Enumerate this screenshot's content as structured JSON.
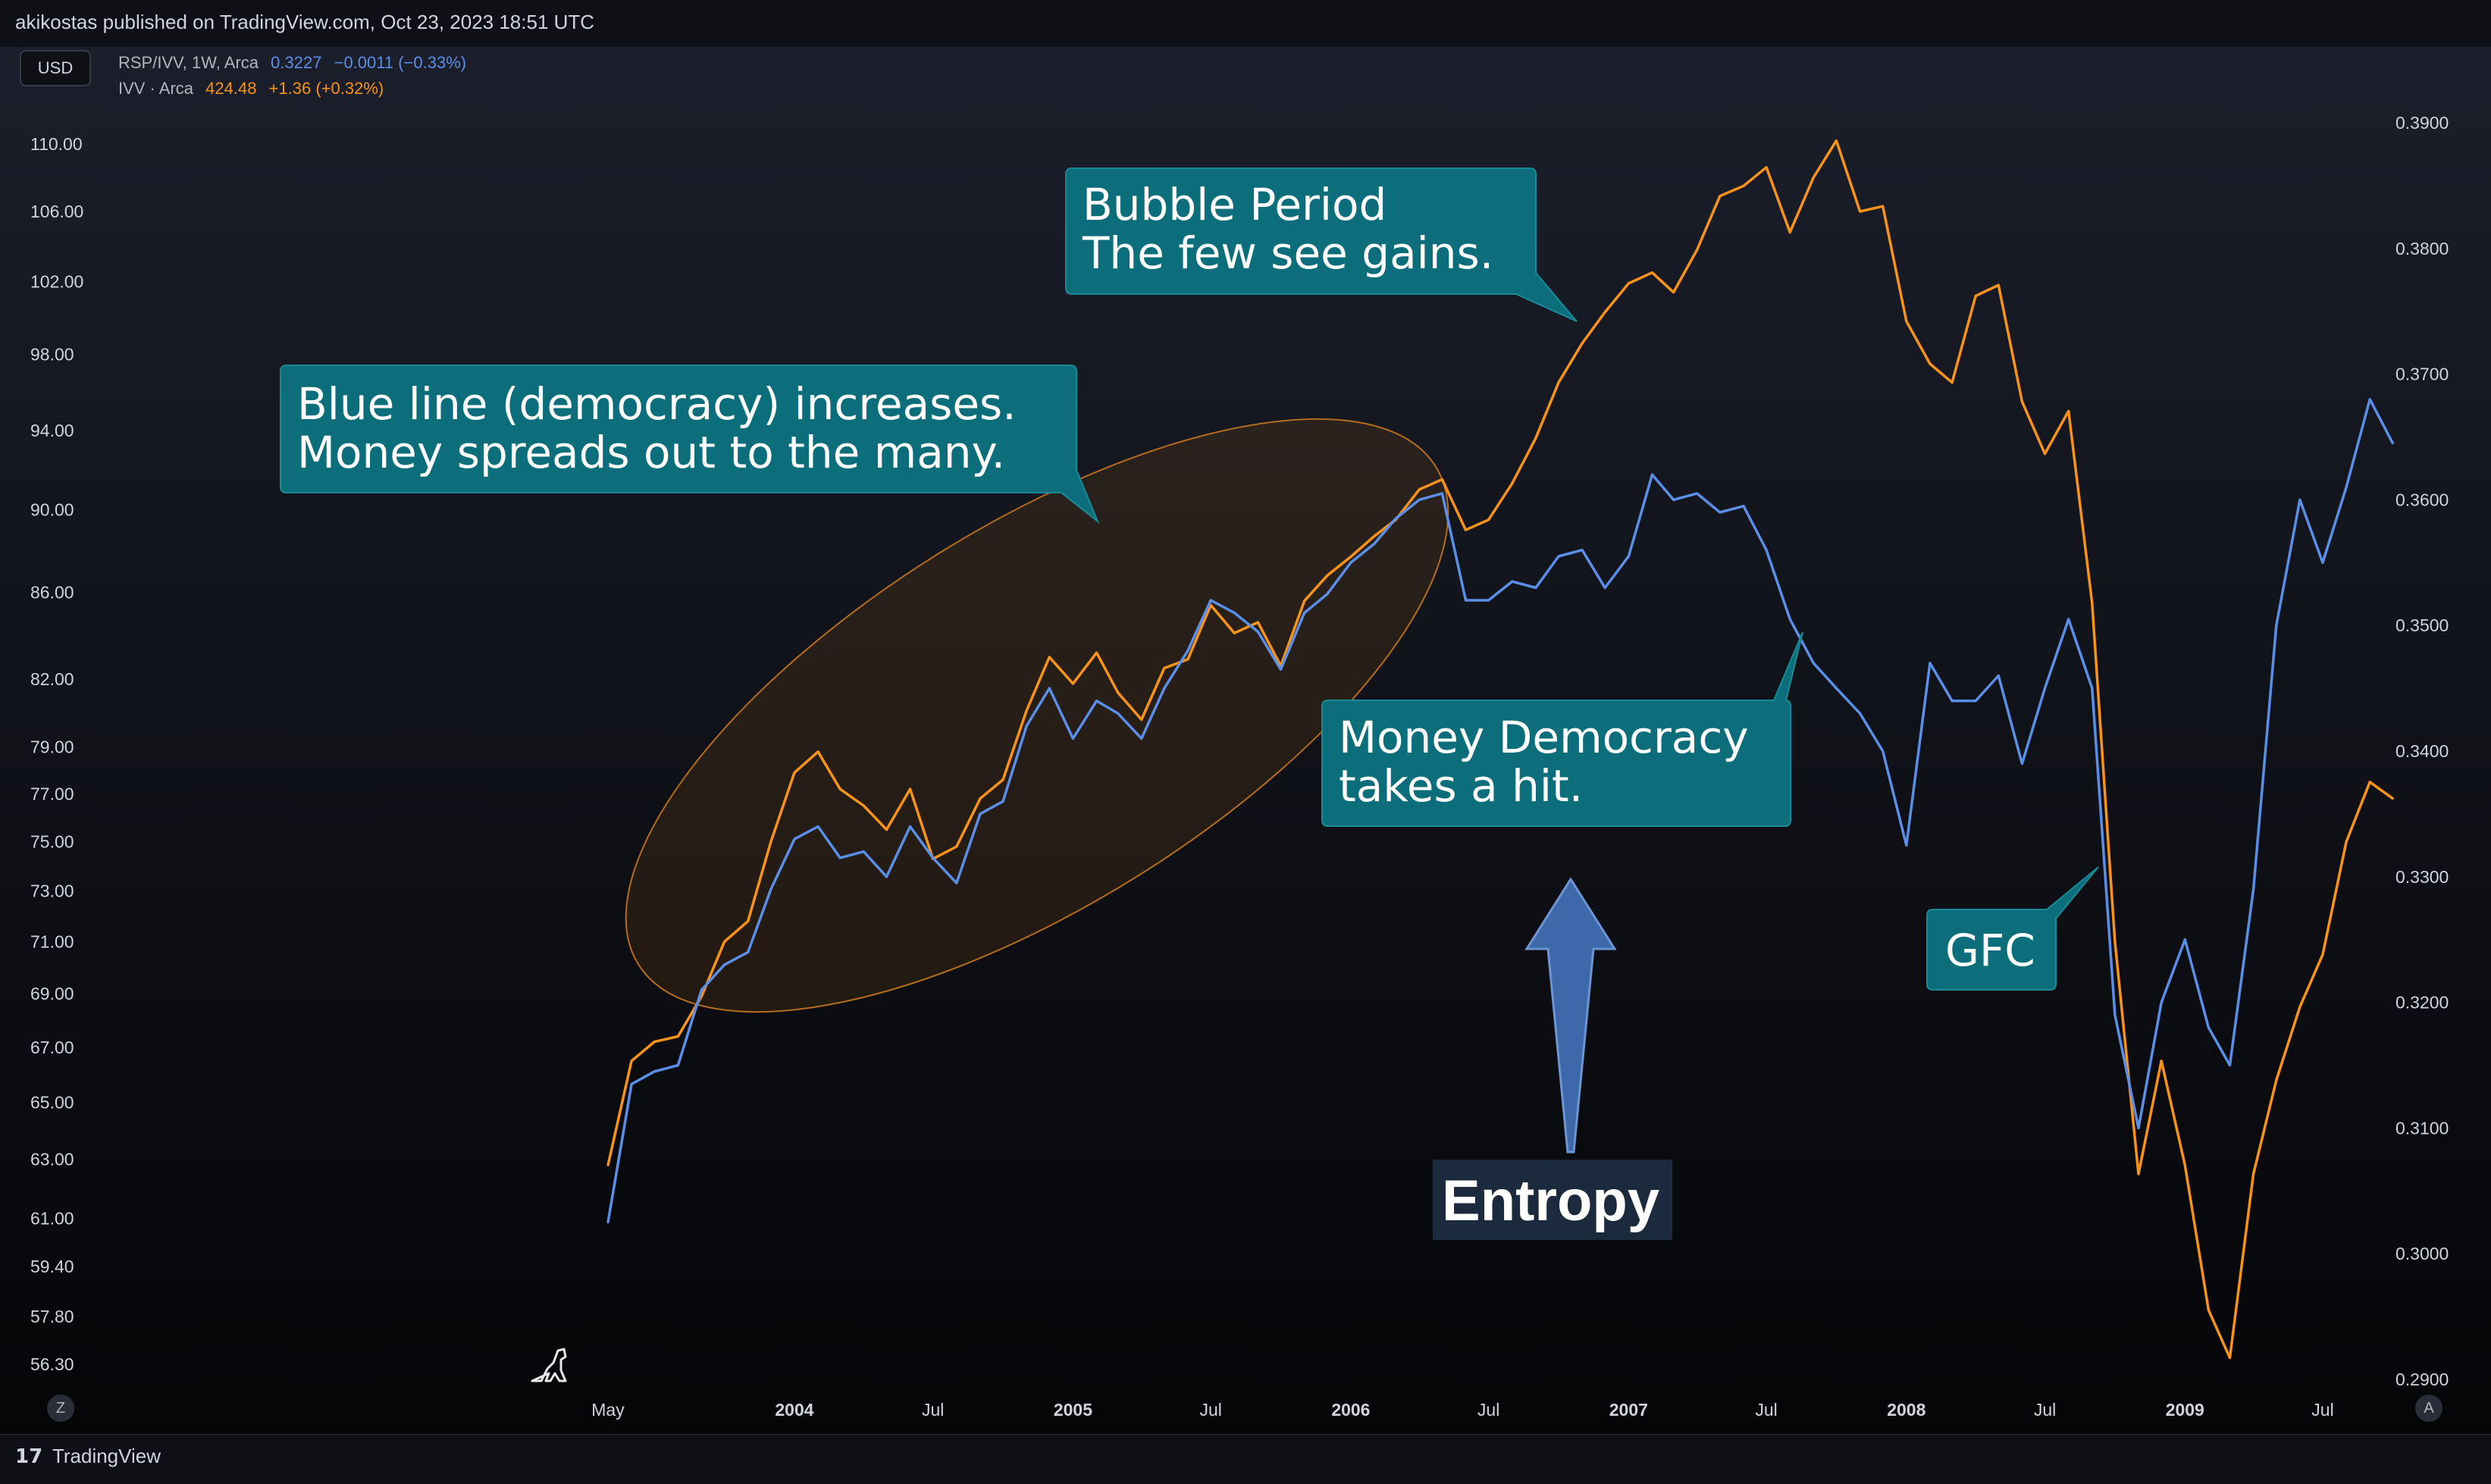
{
  "header": {
    "published": "akikostas published on TradingView.com, Oct 23, 2023 18:51 UTC"
  },
  "currency_button": "USD",
  "legend": {
    "series1": {
      "name": "RSP/IVV, 1W, Arca",
      "value": "0.3227",
      "change": "−0.0011 (−0.33%)"
    },
    "series2": {
      "name": "IVV · Arca",
      "value": "424.48",
      "change": "+1.36 (+0.32%)"
    }
  },
  "footer": {
    "brand": "TradingView",
    "z_button": "Z",
    "a_button": "A"
  },
  "colors": {
    "blue_series": "#5b8ee6",
    "orange_series": "#f7931a",
    "callout_bg": "#0b6e7a",
    "entropy_bg": "#1c2a3d",
    "arrow_fill": "#3d68aa"
  },
  "chart_data": {
    "type": "line",
    "left_axis": {
      "series": "IVV · Arca",
      "scale": "log",
      "ticks": [
        "110.00",
        "106.00",
        "102.00",
        "98.00",
        "94.00",
        "90.00",
        "86.00",
        "82.00",
        "79.00",
        "77.00",
        "75.00",
        "73.00",
        "71.00",
        "69.00",
        "67.00",
        "65.00",
        "63.00",
        "61.00",
        "59.40",
        "57.80",
        "56.30"
      ]
    },
    "right_axis": {
      "series": "RSP/IVV",
      "ticks": [
        "0.3900",
        "0.3800",
        "0.3700",
        "0.3600",
        "0.3500",
        "0.3400",
        "0.3300",
        "0.3200",
        "0.3100",
        "0.3000",
        "0.2900"
      ]
    },
    "x_ticks": [
      {
        "label": "May",
        "year": false
      },
      {
        "label": "2004",
        "year": true
      },
      {
        "label": "Jul",
        "year": false
      },
      {
        "label": "2005",
        "year": true
      },
      {
        "label": "Jul",
        "year": false
      },
      {
        "label": "2006",
        "year": true
      },
      {
        "label": "Jul",
        "year": false
      },
      {
        "label": "2007",
        "year": true
      },
      {
        "label": "Jul",
        "year": false
      },
      {
        "label": "2008",
        "year": true
      },
      {
        "label": "Jul",
        "year": false
      },
      {
        "label": "2009",
        "year": true
      },
      {
        "label": "Jul",
        "year": false
      }
    ],
    "series": [
      {
        "name": "IVV · Arca",
        "axis": "left",
        "color": "#f7931a",
        "points": [
          [
            "2003-05-01",
            62.8
          ],
          [
            "2003-06-01",
            66.5
          ],
          [
            "2003-07-01",
            67.2
          ],
          [
            "2003-08-01",
            67.4
          ],
          [
            "2003-09-01",
            68.9
          ],
          [
            "2003-10-01",
            71.0
          ],
          [
            "2003-11-01",
            71.8
          ],
          [
            "2003-12-01",
            75.0
          ],
          [
            "2004-01-01",
            77.9
          ],
          [
            "2004-02-01",
            78.8
          ],
          [
            "2004-03-01",
            77.2
          ],
          [
            "2004-04-01",
            76.5
          ],
          [
            "2004-05-01",
            75.5
          ],
          [
            "2004-06-01",
            77.2
          ],
          [
            "2004-07-01",
            74.3
          ],
          [
            "2004-08-01",
            74.8
          ],
          [
            "2004-09-01",
            76.8
          ],
          [
            "2004-10-01",
            77.6
          ],
          [
            "2004-11-01",
            80.6
          ],
          [
            "2004-12-01",
            83.0
          ],
          [
            "2005-01-01",
            81.8
          ],
          [
            "2005-02-01",
            83.2
          ],
          [
            "2005-03-01",
            81.4
          ],
          [
            "2005-04-01",
            80.2
          ],
          [
            "2005-05-01",
            82.5
          ],
          [
            "2005-06-01",
            82.9
          ],
          [
            "2005-07-01",
            85.4
          ],
          [
            "2005-08-01",
            84.1
          ],
          [
            "2005-09-01",
            84.6
          ],
          [
            "2005-10-01",
            82.6
          ],
          [
            "2005-11-01",
            85.6
          ],
          [
            "2005-12-01",
            86.8
          ],
          [
            "2006-01-01",
            87.7
          ],
          [
            "2006-02-01",
            88.7
          ],
          [
            "2006-03-01",
            89.5
          ],
          [
            "2006-04-01",
            91.0
          ],
          [
            "2006-05-01",
            91.5
          ],
          [
            "2006-06-01",
            89.0
          ],
          [
            "2006-07-01",
            89.5
          ],
          [
            "2006-08-01",
            91.3
          ],
          [
            "2006-09-01",
            93.6
          ],
          [
            "2006-10-01",
            96.5
          ],
          [
            "2006-11-01",
            98.6
          ],
          [
            "2006-12-01",
            100.3
          ],
          [
            "2007-01-01",
            101.9
          ],
          [
            "2007-02-01",
            102.5
          ],
          [
            "2007-03-01",
            101.4
          ],
          [
            "2007-04-01",
            103.8
          ],
          [
            "2007-05-01",
            106.9
          ],
          [
            "2007-06-01",
            107.5
          ],
          [
            "2007-07-01",
            108.6
          ],
          [
            "2007-08-01",
            104.8
          ],
          [
            "2007-09-01",
            108.0
          ],
          [
            "2007-10-01",
            110.2
          ],
          [
            "2007-11-01",
            106.0
          ],
          [
            "2007-12-01",
            106.3
          ],
          [
            "2008-01-01",
            99.8
          ],
          [
            "2008-02-01",
            97.5
          ],
          [
            "2008-03-01",
            96.5
          ],
          [
            "2008-04-01",
            101.2
          ],
          [
            "2008-05-01",
            101.8
          ],
          [
            "2008-06-01",
            95.5
          ],
          [
            "2008-07-01",
            92.8
          ],
          [
            "2008-08-01",
            95.0
          ],
          [
            "2008-09-01",
            85.5
          ],
          [
            "2008-10-01",
            71.0
          ],
          [
            "2008-11-01",
            62.5
          ],
          [
            "2008-12-01",
            66.5
          ],
          [
            "2009-01-01",
            62.8
          ],
          [
            "2009-02-01",
            58.0
          ],
          [
            "2009-03-01",
            56.5
          ],
          [
            "2009-04-01",
            62.5
          ],
          [
            "2009-05-01",
            65.8
          ],
          [
            "2009-06-01",
            68.5
          ],
          [
            "2009-07-01",
            70.5
          ],
          [
            "2009-08-01",
            75.0
          ],
          [
            "2009-09-01",
            77.5
          ],
          [
            "2009-10-01",
            76.8
          ]
        ]
      },
      {
        "name": "RSP/IVV",
        "axis": "right",
        "color": "#5b8ee6",
        "points": [
          [
            "2003-05-01",
            0.3025
          ],
          [
            "2003-06-01",
            0.3135
          ],
          [
            "2003-07-01",
            0.3145
          ],
          [
            "2003-08-01",
            0.315
          ],
          [
            "2003-09-01",
            0.321
          ],
          [
            "2003-10-01",
            0.323
          ],
          [
            "2003-11-01",
            0.324
          ],
          [
            "2003-12-01",
            0.329
          ],
          [
            "2004-01-01",
            0.333
          ],
          [
            "2004-02-01",
            0.334
          ],
          [
            "2004-03-01",
            0.3315
          ],
          [
            "2004-04-01",
            0.332
          ],
          [
            "2004-05-01",
            0.33
          ],
          [
            "2004-06-01",
            0.334
          ],
          [
            "2004-07-01",
            0.3315
          ],
          [
            "2004-08-01",
            0.3295
          ],
          [
            "2004-09-01",
            0.335
          ],
          [
            "2004-10-01",
            0.336
          ],
          [
            "2004-11-01",
            0.342
          ],
          [
            "2004-12-01",
            0.345
          ],
          [
            "2005-01-01",
            0.341
          ],
          [
            "2005-02-01",
            0.344
          ],
          [
            "2005-03-01",
            0.343
          ],
          [
            "2005-04-01",
            0.341
          ],
          [
            "2005-05-01",
            0.345
          ],
          [
            "2005-06-01",
            0.348
          ],
          [
            "2005-07-01",
            0.352
          ],
          [
            "2005-08-01",
            0.351
          ],
          [
            "2005-09-01",
            0.3495
          ],
          [
            "2005-10-01",
            0.3465
          ],
          [
            "2005-11-01",
            0.351
          ],
          [
            "2005-12-01",
            0.3525
          ],
          [
            "2006-01-01",
            0.355
          ],
          [
            "2006-02-01",
            0.3565
          ],
          [
            "2006-03-01",
            0.3585
          ],
          [
            "2006-04-01",
            0.36
          ],
          [
            "2006-05-01",
            0.3605
          ],
          [
            "2006-06-01",
            0.352
          ],
          [
            "2006-07-01",
            0.352
          ],
          [
            "2006-08-01",
            0.3535
          ],
          [
            "2006-09-01",
            0.353
          ],
          [
            "2006-10-01",
            0.3555
          ],
          [
            "2006-11-01",
            0.356
          ],
          [
            "2006-12-01",
            0.353
          ],
          [
            "2007-01-01",
            0.3555
          ],
          [
            "2007-02-01",
            0.362
          ],
          [
            "2007-03-01",
            0.36
          ],
          [
            "2007-04-01",
            0.3605
          ],
          [
            "2007-05-01",
            0.359
          ],
          [
            "2007-06-01",
            0.3595
          ],
          [
            "2007-07-01",
            0.356
          ],
          [
            "2007-08-01",
            0.3505
          ],
          [
            "2007-09-01",
            0.347
          ],
          [
            "2007-10-01",
            0.345
          ],
          [
            "2007-11-01",
            0.343
          ],
          [
            "2007-12-01",
            0.34
          ],
          [
            "2008-01-01",
            0.3325
          ],
          [
            "2008-02-01",
            0.347
          ],
          [
            "2008-03-01",
            0.344
          ],
          [
            "2008-04-01",
            0.344
          ],
          [
            "2008-05-01",
            0.346
          ],
          [
            "2008-06-01",
            0.339
          ],
          [
            "2008-07-01",
            0.345
          ],
          [
            "2008-08-01",
            0.3505
          ],
          [
            "2008-09-01",
            0.345
          ],
          [
            "2008-10-01",
            0.319
          ],
          [
            "2008-11-01",
            0.31
          ],
          [
            "2008-12-01",
            0.32
          ],
          [
            "2009-01-01",
            0.325
          ],
          [
            "2009-02-01",
            0.318
          ],
          [
            "2009-03-01",
            0.315
          ],
          [
            "2009-04-01",
            0.329
          ],
          [
            "2009-05-01",
            0.35
          ],
          [
            "2009-06-01",
            0.36
          ],
          [
            "2009-07-01",
            0.355
          ],
          [
            "2009-08-01",
            0.361
          ],
          [
            "2009-09-01",
            0.368
          ],
          [
            "2009-10-01",
            0.3645
          ]
        ]
      }
    ]
  },
  "annotations": {
    "blue_line": [
      "Blue line (democracy) increases.",
      "Money spreads out to the many."
    ],
    "bubble": [
      "Bubble Period",
      "The few see gains."
    ],
    "money_democracy": [
      "Money Democracy",
      "takes a hit."
    ],
    "gfc": "GFC",
    "entropy": "Entropy"
  }
}
